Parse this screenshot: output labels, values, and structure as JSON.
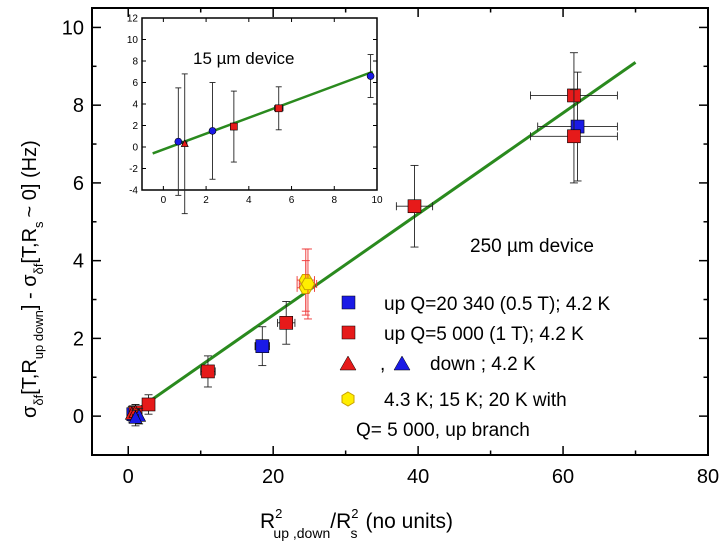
{
  "chart_data": {
    "type": "scatter",
    "xlabel": {
      "main": "R",
      "sup1": "2",
      "sub1": "up ,down",
      "slash": "/R",
      "sup2": "2",
      "sub2": "s",
      "units": "(no units)"
    },
    "ylabel": {
      "p1": "σ",
      "s1": "δf",
      "p2": "[T,R",
      "s2": "up  down",
      "p3": "] - σ",
      "s3": "δf",
      "p4": "[T,R",
      "s4": "s",
      "p5": "~ 0]  (Hz)"
    },
    "xlim": [
      -5,
      80
    ],
    "ylim": [
      -1,
      10.5
    ],
    "xticks": [
      0,
      20,
      40,
      60,
      80
    ],
    "yticks": [
      0,
      2,
      4,
      6,
      8,
      10
    ],
    "fit_line": {
      "color": "#2a8a1e",
      "x": [
        0,
        70
      ],
      "y": [
        0.0,
        9.1
      ]
    },
    "device_label": "250 µm device",
    "series": [
      {
        "name": "up Q=20 340 (0.5 T); 4.2 K",
        "marker": "square",
        "color": "#1a1ae6",
        "points": [
          {
            "x": 18.5,
            "y": 1.8,
            "xerr": 1.0,
            "yerr": 0.5
          },
          {
            "x": 62.0,
            "y": 7.45,
            "xerr": 5.5,
            "yerr": 1.4
          },
          {
            "x": 0.7,
            "y": 0.05,
            "xerr": 0.5,
            "yerr": 0.2
          }
        ]
      },
      {
        "name": "up Q=5 000 (1 T); 4.2 K",
        "marker": "square",
        "color": "#e61a1a",
        "points": [
          {
            "x": 11.0,
            "y": 1.15,
            "xerr": 1.0,
            "yerr": 0.4
          },
          {
            "x": 21.8,
            "y": 2.4,
            "xerr": 1.2,
            "yerr": 0.55
          },
          {
            "x": 39.5,
            "y": 5.4,
            "xerr": 2.5,
            "yerr": 1.05
          },
          {
            "x": 61.5,
            "y": 8.25,
            "xerr": 6.0,
            "yerr": 1.1
          },
          {
            "x": 61.5,
            "y": 7.2,
            "xerr": 6.0,
            "yerr": 1.2
          },
          {
            "x": 2.8,
            "y": 0.3,
            "xerr": 0.8,
            "yerr": 0.25
          },
          {
            "x": 1.0,
            "y": 0.1,
            "xerr": 0.5,
            "yerr": 0.2
          }
        ]
      },
      {
        "name": "up triangle; 4.2 K",
        "marker": "triangle",
        "color": "#e61a1a",
        "points": [
          {
            "x": 0.5,
            "y": 0.05,
            "xerr": 0.4,
            "yerr": 0.2
          },
          {
            "x": 1.0,
            "y": 0.1,
            "xerr": 0.4,
            "yerr": 0.2
          }
        ]
      },
      {
        "name": "down ; 4.2 K",
        "marker": "triangle",
        "color": "#1a1ae6",
        "points": [
          {
            "x": 1.5,
            "y": 0.0,
            "xerr": 0.4,
            "yerr": 0.2
          },
          {
            "x": 1.0,
            "y": -0.05,
            "xerr": 0.4,
            "yerr": 0.2
          }
        ]
      },
      {
        "name": "4.3 K; 15 K; 20 K with Q= 5 000, up branch",
        "marker": "hexagon",
        "color": "#ffee00",
        "points": [
          {
            "x": 24.5,
            "y": 3.5,
            "xerr": 1.2,
            "yerr": 0.8
          },
          {
            "x": 24.5,
            "y": 3.3,
            "xerr": 1.2,
            "yerr": 0.7
          },
          {
            "x": 24.8,
            "y": 3.4,
            "xerr": 1.2,
            "yerr": 0.9
          }
        ]
      }
    ],
    "legend": {
      "placement": "bottom-right",
      "entries": [
        {
          "text": "up Q=20 340 (0.5 T); 4.2 K"
        },
        {
          "text": "up Q=5 000 (1 T); 4.2 K"
        },
        {
          "sep": ",",
          "text": "down ; 4.2 K"
        },
        {
          "text": "4.3 K; 15 K; 20 K with"
        },
        {
          "text": "Q= 5 000, up branch"
        }
      ]
    },
    "inset": {
      "type": "scatter",
      "title": "15 µm device",
      "xlim": [
        -1,
        10
      ],
      "ylim": [
        -4,
        12
      ],
      "xticks": [
        0,
        2,
        4,
        6,
        8,
        10
      ],
      "yticks": [
        -4,
        -2,
        0,
        2,
        4,
        6,
        8,
        10,
        12
      ],
      "fit_line": {
        "color": "#2a8a1e",
        "x": [
          -0.5,
          9.8
        ],
        "y": [
          -0.6,
          7.0
        ]
      },
      "series": [
        {
          "marker": "circle",
          "color": "#1a1ae6",
          "points": [
            {
              "x": 0.7,
              "y": 0.5,
              "xerr": 0.1,
              "yerr": 5.0
            },
            {
              "x": 2.3,
              "y": 1.5,
              "xerr": 0.1,
              "yerr": 4.5
            },
            {
              "x": 9.7,
              "y": 6.6,
              "xerr": 0.1,
              "yerr": 2.0
            }
          ]
        },
        {
          "marker": "square",
          "color": "#e61a1a",
          "points": [
            {
              "x": 3.3,
              "y": 1.9,
              "xerr": 0.15,
              "yerr": 3.3
            },
            {
              "x": 5.4,
              "y": 3.6,
              "xerr": 0.2,
              "yerr": 2.0
            }
          ]
        },
        {
          "marker": "triangle",
          "color": "#e61a1a",
          "points": [
            {
              "x": 1.0,
              "y": 0.3,
              "xerr": 0.1,
              "yerr": 6.5
            }
          ]
        }
      ]
    }
  }
}
